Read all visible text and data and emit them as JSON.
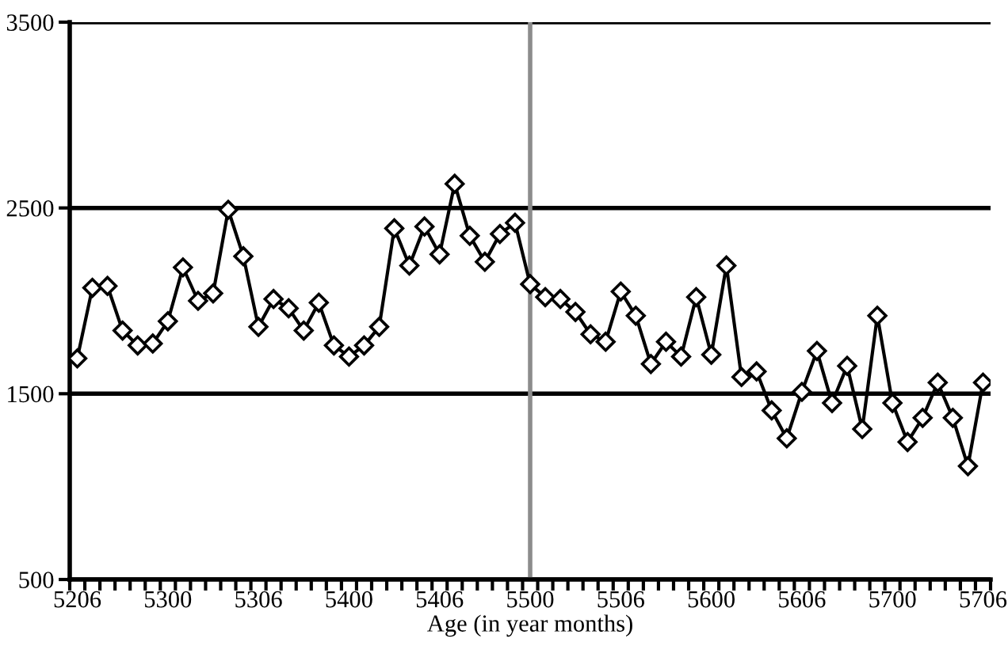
{
  "chart_data": {
    "type": "line",
    "xlabel": "Age (in year months)",
    "categories": [
      "5206",
      null,
      null,
      null,
      null,
      null,
      "5300",
      null,
      null,
      null,
      null,
      null,
      "5306",
      null,
      null,
      null,
      null,
      null,
      "5400",
      null,
      null,
      null,
      null,
      null,
      "5406",
      null,
      null,
      null,
      null,
      null,
      "5500",
      null,
      null,
      null,
      null,
      null,
      "5506",
      null,
      null,
      null,
      null,
      null,
      "5600",
      null,
      null,
      null,
      null,
      null,
      "5606",
      null,
      null,
      null,
      null,
      null,
      "5700",
      null,
      null,
      null,
      null,
      null,
      "5706"
    ],
    "series": [
      {
        "color": "#000000",
        "values": [
          1690,
          2070,
          2080,
          1840,
          1760,
          1770,
          1890,
          2180,
          2000,
          2040,
          2490,
          2240,
          1860,
          2010,
          1960,
          1840,
          1990,
          1760,
          1700,
          1760,
          1860,
          2390,
          2190,
          2400,
          2250,
          2630,
          2350,
          2210,
          2360,
          2420,
          2090,
          2020,
          2010,
          1940,
          1820,
          1780,
          2050,
          1920,
          1660,
          1780,
          1700,
          2020,
          1710,
          2190,
          1590,
          1620,
          1410,
          1260,
          1510,
          1730,
          1450,
          1650,
          1310,
          1920,
          1450,
          1240,
          1370,
          1560,
          1370,
          1110,
          1560
        ]
      }
    ],
    "ylim": [
      500,
      3500
    ],
    "yticks": [
      500,
      1500,
      2500,
      3500
    ],
    "grid": "y",
    "marker": "diamond",
    "line_style": "solid",
    "legend": false,
    "ref_lines": [
      {
        "axis": "x",
        "value": "5500",
        "color": "#8c8c8c"
      }
    ]
  }
}
